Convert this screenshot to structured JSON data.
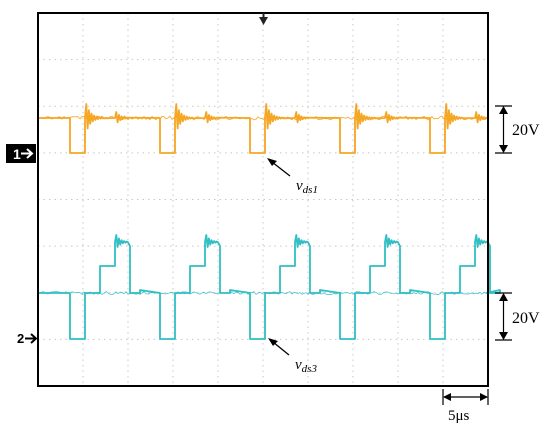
{
  "chart_data": {
    "type": "line",
    "title": "",
    "grid": true,
    "x_divisions": 10,
    "y_divisions": 8,
    "time_scale_label": "5μs",
    "colors": {
      "ch1": "#f5a623",
      "ch2": "#2fbfc4",
      "grid": "#c8c8c8",
      "frame": "#000000"
    },
    "channel_markers": [
      {
        "name": "ch1-marker",
        "label": "1"
      },
      {
        "name": "ch2-marker",
        "label": "2"
      }
    ],
    "series": [
      {
        "name": "vds1",
        "label_main": "v",
        "label_sub": "ds1",
        "color": "#f5a623",
        "scale": "20V",
        "period_div": 2,
        "high_div": 1.33,
        "low_div": 0.4
      },
      {
        "name": "vds3",
        "label_main": "v",
        "label_sub": "ds3",
        "color": "#2fbfc4",
        "scale": "20V",
        "period_div": 2,
        "high_div": 1.2,
        "low_div": 0.4
      }
    ]
  }
}
